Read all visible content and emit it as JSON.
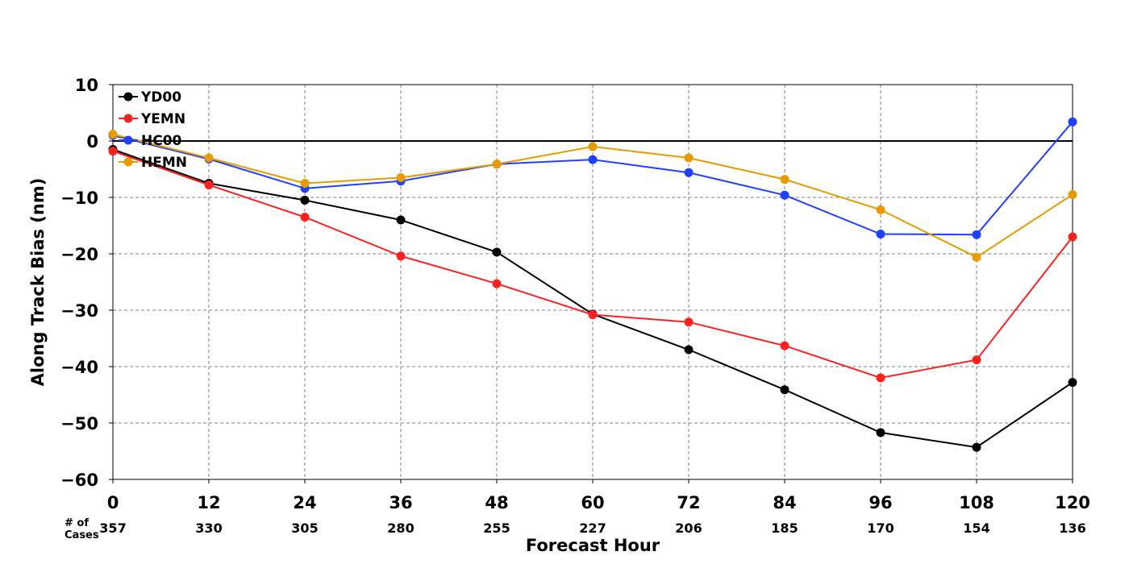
{
  "chart_data": {
    "type": "line",
    "xlabel": "Forecast Hour",
    "ylabel": "Along Track Bias (nm)",
    "x": [
      0,
      12,
      24,
      36,
      48,
      60,
      72,
      84,
      96,
      108,
      120
    ],
    "xticks": [
      "0",
      "12",
      "24",
      "36",
      "48",
      "60",
      "72",
      "84",
      "96",
      "108",
      "120"
    ],
    "xlim": [
      0,
      120
    ],
    "ylim": [
      -60,
      10
    ],
    "yticks": [
      10,
      0,
      -10,
      -20,
      -30,
      -40,
      -50,
      -60
    ],
    "ytick_labels": [
      "10",
      "0",
      "−10",
      "−20",
      "−30",
      "−40",
      "−50",
      "−60"
    ],
    "grid": true,
    "zero_line": true,
    "legend_position": "top-left",
    "cases_header": [
      "# of",
      "Cases"
    ],
    "cases": [
      "357",
      "330",
      "305",
      "280",
      "255",
      "227",
      "206",
      "185",
      "170",
      "154",
      "136"
    ],
    "series": [
      {
        "name": "YD00",
        "color": "#000000",
        "values": [
          -1.5,
          -7.5,
          -10.5,
          -14.0,
          -19.7,
          -30.7,
          -37.0,
          -44.1,
          -51.7,
          -54.3,
          -42.8
        ]
      },
      {
        "name": "YEMN",
        "color": "#ff2020",
        "values": [
          -1.8,
          -7.8,
          -13.5,
          -20.4,
          -25.3,
          -30.8,
          -32.1,
          -36.3,
          -42.0,
          -38.8,
          -17.0
        ]
      },
      {
        "name": "HC00",
        "color": "#2040ff",
        "values": [
          1.0,
          -3.2,
          -8.4,
          -7.1,
          -4.1,
          -3.3,
          -5.6,
          -9.6,
          -16.5,
          -16.6,
          3.4
        ]
      },
      {
        "name": "HEMN",
        "color": "#e69b00",
        "values": [
          1.2,
          -3.0,
          -7.5,
          -6.5,
          -4.1,
          -1.0,
          -3.0,
          -6.8,
          -12.2,
          -20.6,
          -9.5
        ]
      }
    ]
  }
}
